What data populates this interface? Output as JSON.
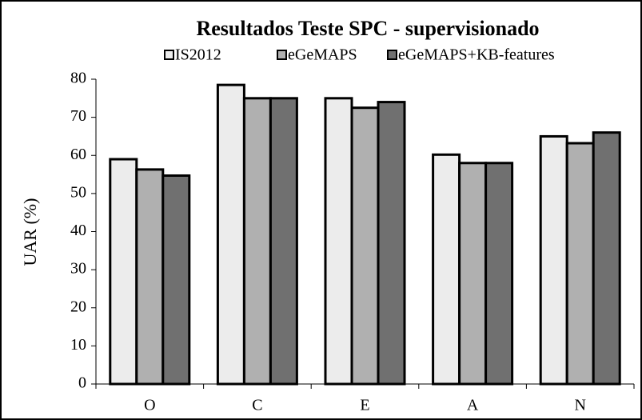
{
  "chart_data": {
    "type": "bar",
    "title": "Resultados Teste SPC - supervisionado",
    "ylabel": "UAR (%)",
    "categories": [
      "O",
      "C",
      "E",
      "A",
      "N"
    ],
    "series": [
      {
        "name": "IS2012",
        "color": "#ececec",
        "values": [
          59,
          78.5,
          75,
          60.2,
          65
        ]
      },
      {
        "name": "eGeMAPS",
        "color": "#b0b0b0",
        "values": [
          56.3,
          75,
          72.5,
          58,
          63.2
        ]
      },
      {
        "name": "eGeMAPS+KB-features",
        "color": "#707070",
        "values": [
          54.7,
          75,
          74,
          58,
          66
        ]
      }
    ],
    "ylim": [
      0,
      80
    ],
    "yticks": [
      0,
      10,
      20,
      30,
      40,
      50,
      60,
      70,
      80
    ],
    "grid": false,
    "legend": "top"
  }
}
